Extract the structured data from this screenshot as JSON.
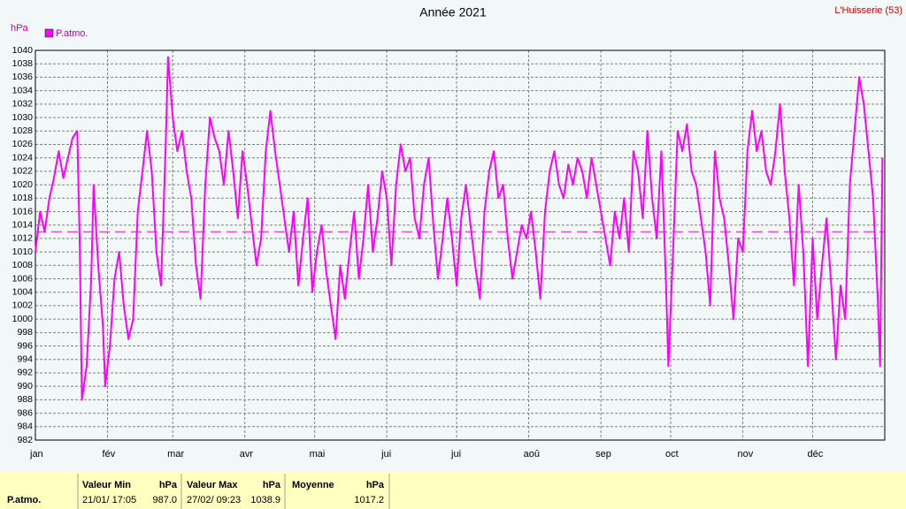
{
  "chart_data": {
    "type": "line",
    "title": "Année 2021",
    "location": "L'Huisserie (53)",
    "y_label": "hPa",
    "x": [
      1,
      3,
      5,
      7,
      9,
      11,
      13,
      15,
      17,
      19,
      20,
      21,
      23,
      25,
      26,
      28,
      30,
      31,
      33,
      35,
      37,
      39,
      41,
      43,
      45,
      47,
      49,
      51,
      53,
      55,
      57,
      58,
      60,
      62,
      64,
      66,
      68,
      70,
      72,
      74,
      76,
      78,
      80,
      82,
      84,
      86,
      88,
      90,
      92,
      94,
      96,
      98,
      100,
      102,
      104,
      106,
      108,
      110,
      112,
      114,
      116,
      118,
      120,
      122,
      124,
      126,
      128,
      130,
      132,
      134,
      136,
      138,
      140,
      142,
      144,
      146,
      148,
      150,
      152,
      154,
      156,
      158,
      160,
      162,
      164,
      166,
      168,
      170,
      172,
      174,
      176,
      178,
      180,
      182,
      184,
      186,
      188,
      190,
      192,
      194,
      196,
      198,
      200,
      202,
      204,
      206,
      208,
      210,
      212,
      214,
      216,
      218,
      220,
      222,
      224,
      226,
      228,
      230,
      232,
      234,
      236,
      238,
      240,
      242,
      244,
      246,
      248,
      250,
      252,
      254,
      256,
      258,
      260,
      262,
      264,
      266,
      268,
      270,
      272,
      273,
      275,
      277,
      279,
      281,
      283,
      285,
      287,
      289,
      291,
      293,
      295,
      297,
      299,
      301,
      303,
      305,
      307,
      309,
      311,
      313,
      315,
      317,
      319,
      321,
      323,
      325,
      327,
      329,
      331,
      333,
      335,
      337,
      339,
      341,
      343,
      345,
      347,
      349,
      351,
      353,
      355,
      357,
      359,
      361,
      363,
      364,
      365
    ],
    "series": [
      {
        "name": "P.atmo.",
        "color": "#ff00ff",
        "values": [
          1010,
          1016,
          1013,
          1018,
          1021,
          1025,
          1021,
          1024,
          1027,
          1028,
          1012,
          988,
          993,
          1006,
          1020,
          1008,
          999,
          990,
          996,
          1006,
          1010,
          1002,
          997,
          1000,
          1016,
          1022,
          1028,
          1022,
          1010,
          1005,
          1026,
          1039,
          1030,
          1025,
          1028,
          1022,
          1018,
          1008,
          1003,
          1020,
          1030,
          1027,
          1025,
          1020,
          1028,
          1022,
          1015,
          1025,
          1020,
          1014,
          1008,
          1012,
          1025,
          1031,
          1025,
          1020,
          1015,
          1010,
          1016,
          1005,
          1012,
          1018,
          1004,
          1010,
          1014,
          1007,
          1002,
          997,
          1008,
          1003,
          1010,
          1016,
          1006,
          1012,
          1020,
          1010,
          1015,
          1022,
          1018,
          1008,
          1020,
          1026,
          1022,
          1024,
          1015,
          1012,
          1020,
          1024,
          1014,
          1006,
          1012,
          1018,
          1012,
          1005,
          1015,
          1020,
          1014,
          1008,
          1003,
          1016,
          1022,
          1025,
          1018,
          1020,
          1012,
          1006,
          1010,
          1014,
          1012,
          1016,
          1010,
          1003,
          1016,
          1022,
          1025,
          1020,
          1018,
          1023,
          1020,
          1024,
          1022,
          1018,
          1024,
          1020,
          1016,
          1012,
          1008,
          1016,
          1012,
          1018,
          1010,
          1025,
          1022,
          1015,
          1028,
          1018,
          1012,
          1025,
          1005,
          993,
          1010,
          1028,
          1025,
          1029,
          1022,
          1020,
          1015,
          1010,
          1002,
          1025,
          1018,
          1015,
          1008,
          1000,
          1012,
          1010,
          1025,
          1031,
          1025,
          1028,
          1022,
          1020,
          1025,
          1032,
          1022,
          1015,
          1005,
          1020,
          1010,
          993,
          1012,
          1000,
          1008,
          1015,
          1005,
          994,
          1005,
          1000,
          1020,
          1028,
          1036,
          1032,
          1025,
          1018,
          1003,
          993,
          1024
        ]
      }
    ],
    "reference_value": 1013,
    "xlim": [
      1,
      366
    ],
    "xticks": [
      {
        "value": 1,
        "label": "jan"
      },
      {
        "value": 32,
        "label": "fév"
      },
      {
        "value": 60,
        "label": "mar"
      },
      {
        "value": 91,
        "label": "avr"
      },
      {
        "value": 121,
        "label": "mai"
      },
      {
        "value": 152,
        "label": "jui"
      },
      {
        "value": 182,
        "label": "jui"
      },
      {
        "value": 213,
        "label": "aoû"
      },
      {
        "value": 244,
        "label": "sep"
      },
      {
        "value": 274,
        "label": "oct"
      },
      {
        "value": 305,
        "label": "nov"
      },
      {
        "value": 335,
        "label": "déc"
      }
    ],
    "ylim": [
      982,
      1040
    ],
    "yticks": [
      982,
      984,
      986,
      988,
      990,
      992,
      994,
      996,
      998,
      1000,
      1002,
      1004,
      1006,
      1008,
      1010,
      1012,
      1014,
      1016,
      1018,
      1020,
      1022,
      1024,
      1026,
      1028,
      1030,
      1032,
      1034,
      1036,
      1038,
      1040
    ],
    "grid": true
  },
  "stats": {
    "series_label": "P.atmo.",
    "min": {
      "label": "Valeur Min",
      "unit": "hPa",
      "date": "21/01/ 17:05",
      "value": "987.0"
    },
    "max": {
      "label": "Valeur Max",
      "unit": "hPa",
      "date": "27/02/ 09:23",
      "value": "1038.9"
    },
    "mean": {
      "label": "Moyenne",
      "unit": "hPa",
      "value": "1017.2"
    }
  }
}
